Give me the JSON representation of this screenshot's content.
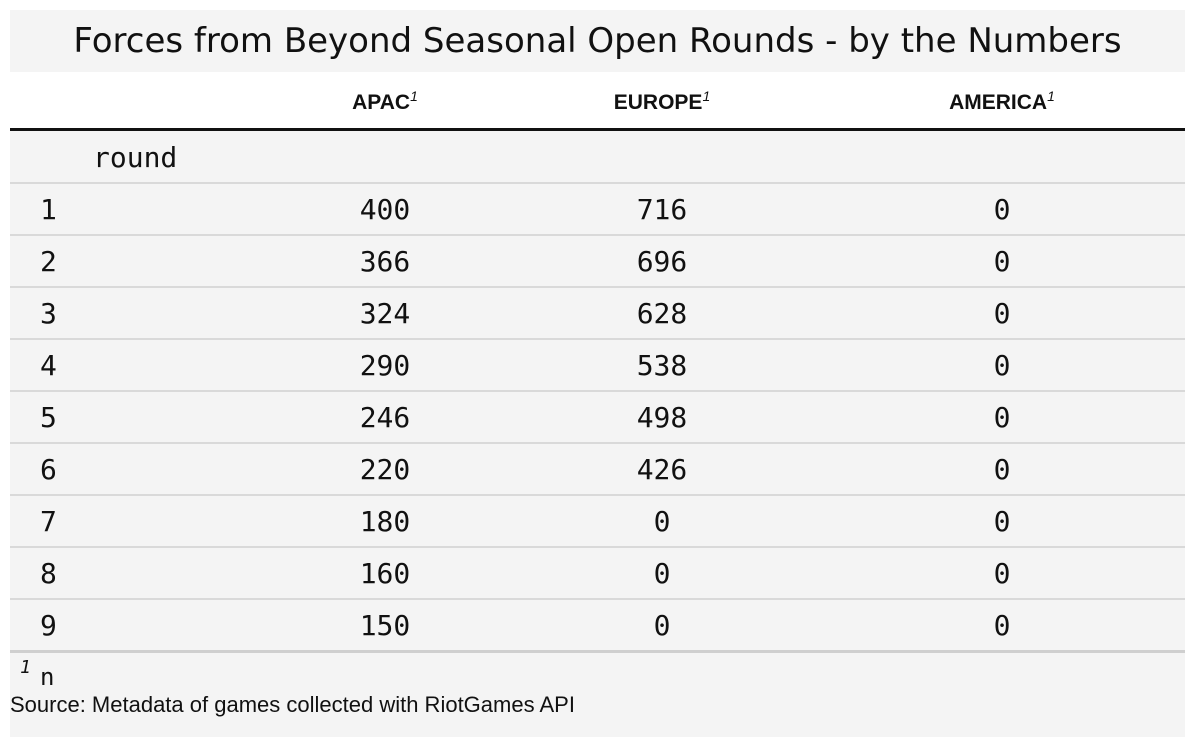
{
  "title": "Forces from Beyond Seasonal Open Rounds - by the Numbers",
  "columns": {
    "apac": {
      "label": "APAC",
      "footnote_mark": "1"
    },
    "europe": {
      "label": "EUROPE",
      "footnote_mark": "1"
    },
    "america": {
      "label": "AMERICA",
      "footnote_mark": "1"
    }
  },
  "group_label": "round",
  "rows": [
    {
      "round": "1",
      "apac": "400",
      "europe": "716",
      "america": "0"
    },
    {
      "round": "2",
      "apac": "366",
      "europe": "696",
      "america": "0"
    },
    {
      "round": "3",
      "apac": "324",
      "europe": "628",
      "america": "0"
    },
    {
      "round": "4",
      "apac": "290",
      "europe": "538",
      "america": "0"
    },
    {
      "round": "5",
      "apac": "246",
      "europe": "498",
      "america": "0"
    },
    {
      "round": "6",
      "apac": "220",
      "europe": "426",
      "america": "0"
    },
    {
      "round": "7",
      "apac": "180",
      "europe": "0",
      "america": "0"
    },
    {
      "round": "8",
      "apac": "160",
      "europe": "0",
      "america": "0"
    },
    {
      "round": "9",
      "apac": "150",
      "europe": "0",
      "america": "0"
    }
  ],
  "footnote": {
    "mark": "1",
    "text": "n"
  },
  "source": "Source: Metadata of games collected with RiotGames API"
}
